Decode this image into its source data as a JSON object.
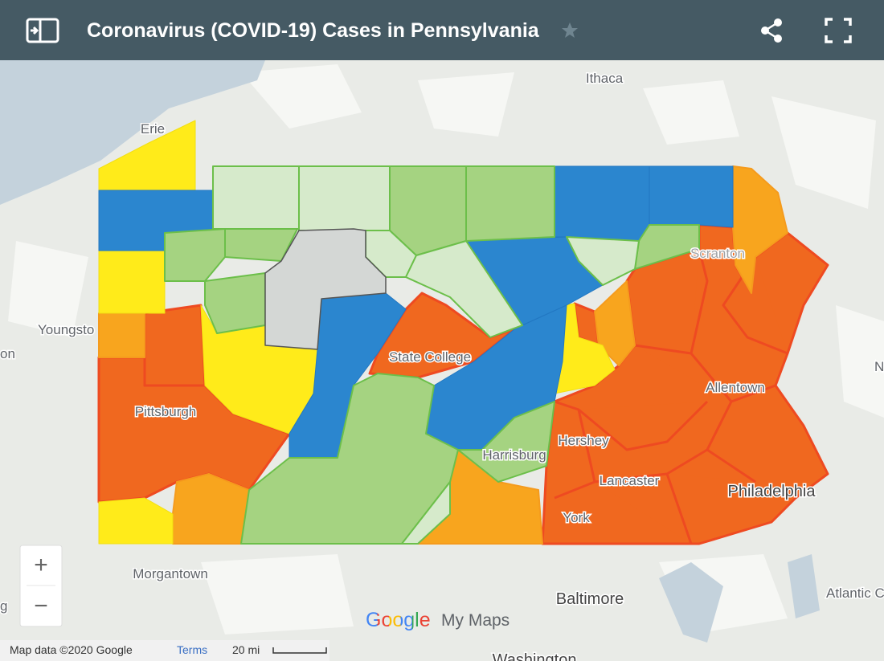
{
  "header": {
    "title": "Coronavirus (COVID-19) Cases in Pennsylvania"
  },
  "map": {
    "places": [
      {
        "label": "Ithaca"
      },
      {
        "label": "Erie"
      },
      {
        "label": "Youngsto"
      },
      {
        "label": "on"
      },
      {
        "label": "Scranton"
      },
      {
        "label": "State College"
      },
      {
        "label": "Allentown"
      },
      {
        "label": "Pittsburgh"
      },
      {
        "label": "Hershey"
      },
      {
        "label": "Harrisburg"
      },
      {
        "label": "Lancaster"
      },
      {
        "label": "York"
      },
      {
        "label": "Philadelphia"
      },
      {
        "label": "Morgantown"
      },
      {
        "label": "Baltimore"
      },
      {
        "label": "Atlantic C"
      },
      {
        "label": "Washington"
      },
      {
        "label": "N"
      },
      {
        "label": "g"
      }
    ]
  },
  "zoom": {
    "in": "+",
    "out": "−"
  },
  "branding": {
    "logo": "Google",
    "product": "My Maps"
  },
  "footer": {
    "attribution": "Map data ©2020 Google",
    "terms": "Terms",
    "scale": "20 mi"
  }
}
